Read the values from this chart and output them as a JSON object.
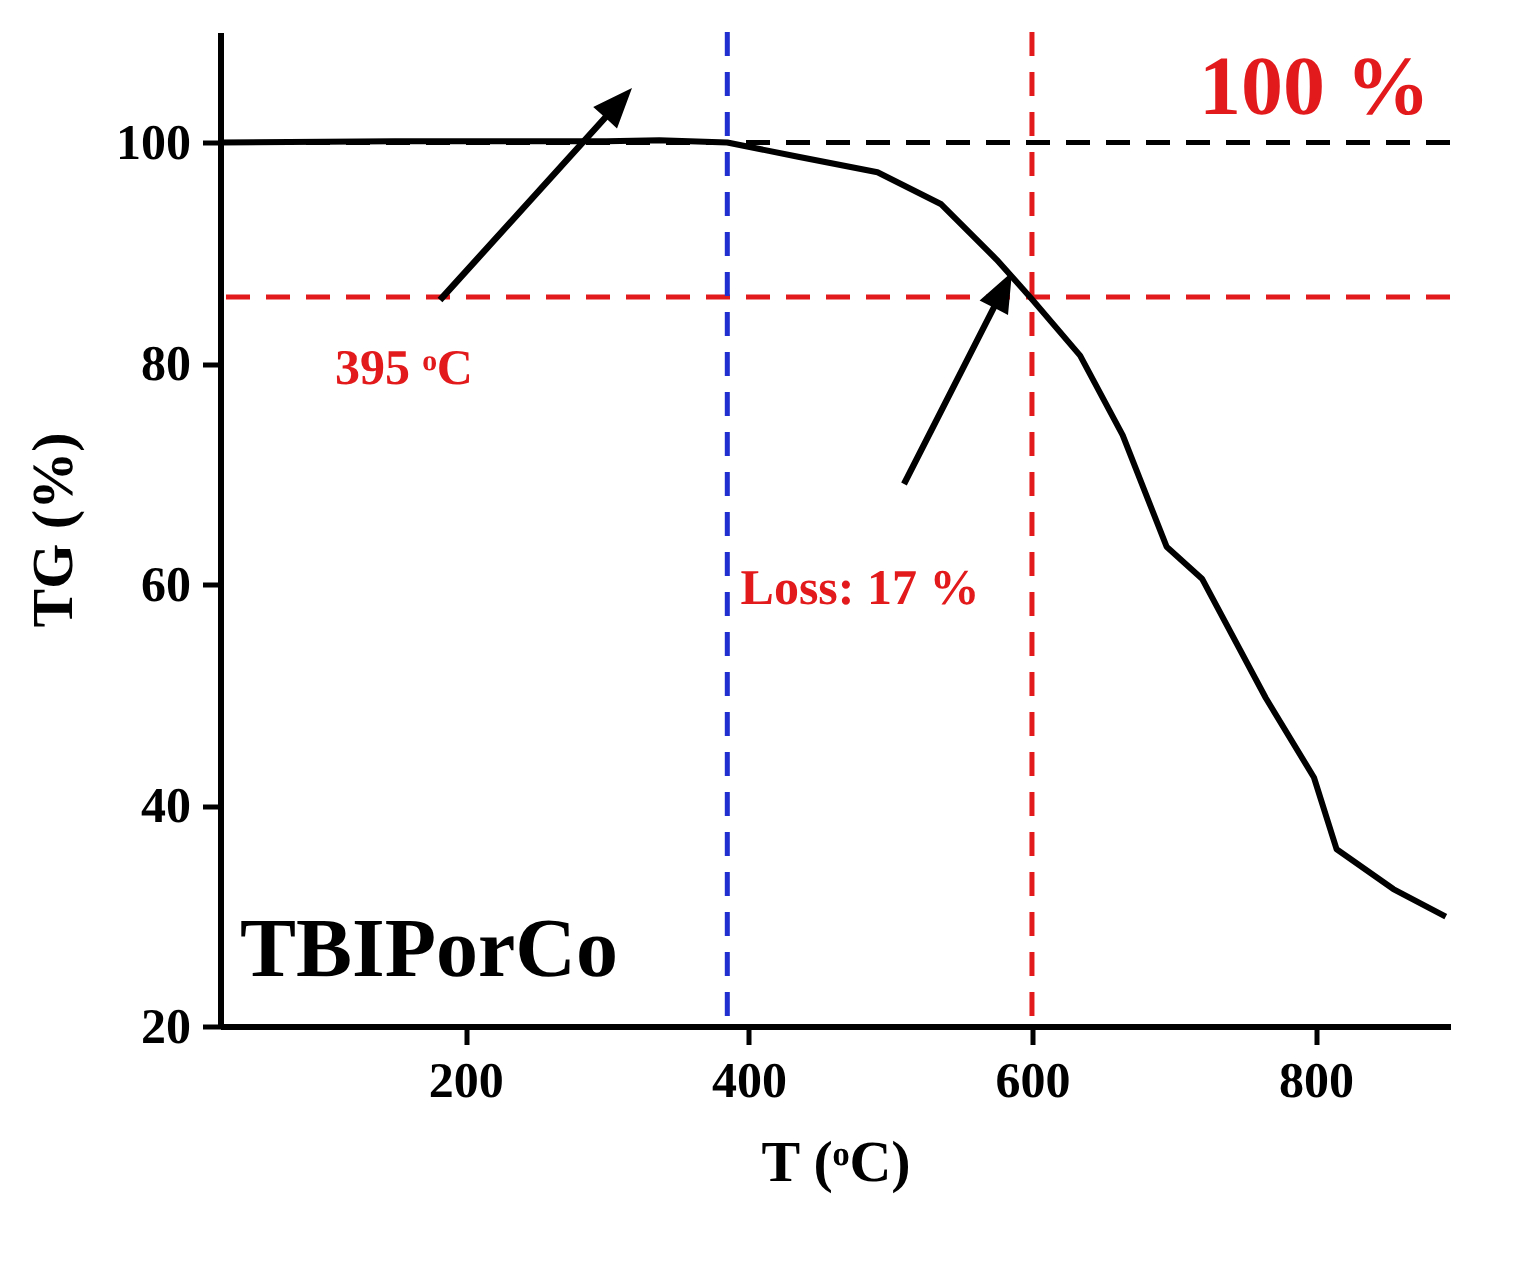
{
  "chart_data": {
    "type": "line",
    "xlabel": "T (ᵒC)",
    "ylabel": "TG (%)",
    "x": [
      27,
      150,
      300,
      337,
      385,
      435,
      491,
      536,
      575,
      600,
      634,
      664,
      695,
      720,
      765,
      799,
      815,
      855,
      892
    ],
    "series": [
      {
        "color": "#000000",
        "values": [
          100,
          100.1,
          100.1,
          100.2,
          100,
          98.7,
          97.3,
          94.4,
          89.4,
          85.8,
          80.7,
          73.5,
          63.4,
          60.5,
          49.7,
          42.5,
          36,
          32.4,
          29.9
        ]
      }
    ],
    "xlim": [
      27,
      895
    ],
    "ylim": [
      20,
      110
    ],
    "xticks": [
      200,
      400,
      600,
      800
    ],
    "yticks": [
      20,
      40,
      60,
      80,
      100
    ],
    "grid": false,
    "marker": "none",
    "line_style": "solid",
    "ref_lines": [
      {
        "axis": "y",
        "value": 100,
        "color": "#000000",
        "line_style": "dashed"
      },
      {
        "axis": "x",
        "value": 385,
        "color": "#1f2fd0",
        "line_style": "dashed"
      },
      {
        "axis": "x",
        "value": 600,
        "color": "#e31a1c",
        "line_style": "dashed"
      },
      {
        "axis": "y",
        "value": 86,
        "color": "#e31a1c",
        "line_style": "dashed"
      }
    ],
    "annotations": [
      "395 ᵒC",
      "Loss: 17 %",
      "100 %",
      "TBIPorCo"
    ]
  }
}
